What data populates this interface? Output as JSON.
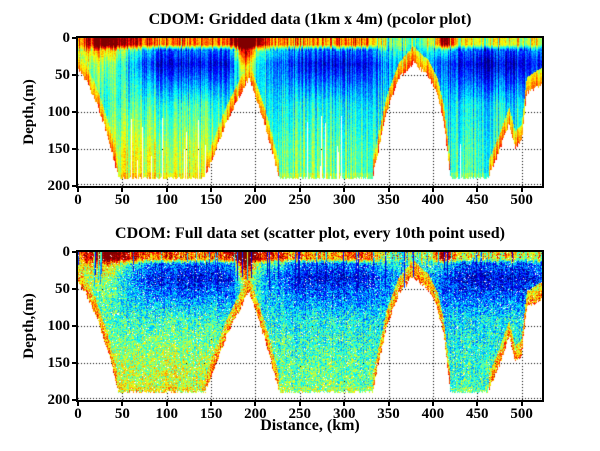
{
  "figure": {
    "background": "#ffffff",
    "axis_color": "#000000",
    "text_color": "#000000",
    "grid_style": "dotted",
    "colormap": "jet",
    "colormap_hint": {
      "low": "#00008f",
      "mid": "#00ffff",
      "high": "#7f0000"
    }
  },
  "chart_data": [
    {
      "type": "heatmap",
      "title": "CDOM: Gridded data (1km x 4m) (pcolor plot)",
      "xlabel": "",
      "ylabel": "Depth,(m)",
      "xlim": [
        0,
        523
      ],
      "ylim": [
        200,
        0
      ],
      "xticks": [
        0,
        50,
        100,
        150,
        200,
        250,
        300,
        350,
        400,
        450,
        500
      ],
      "yticks": [
        0,
        50,
        100,
        150,
        200
      ],
      "grid": true,
      "colormap": "jet",
      "render": {
        "mode": "pcolor",
        "seed": 11,
        "column_noise": 0.11,
        "pixel_noise": 0.05,
        "surface_noise": 0.12,
        "missing_column_prob": 0.05
      },
      "field": {
        "bathymetry_km_m": [
          [
            0,
            42
          ],
          [
            8,
            55
          ],
          [
            20,
            85
          ],
          [
            33,
            130
          ],
          [
            46,
            190
          ],
          [
            143,
            190
          ],
          [
            168,
            112
          ],
          [
            193,
            53
          ],
          [
            212,
            122
          ],
          [
            227,
            190
          ],
          [
            332,
            190
          ],
          [
            348,
            100
          ],
          [
            362,
            55
          ],
          [
            378,
            33
          ],
          [
            395,
            52
          ],
          [
            405,
            75
          ],
          [
            412,
            110
          ],
          [
            420,
            190
          ],
          [
            462,
            190
          ],
          [
            476,
            150
          ],
          [
            486,
            115
          ],
          [
            493,
            148
          ],
          [
            500,
            140
          ],
          [
            506,
            75
          ],
          [
            523,
            62
          ]
        ],
        "surface_value": [
          [
            0,
            0.74
          ],
          [
            18,
            0.82
          ],
          [
            25,
            0.92
          ],
          [
            48,
            0.92
          ],
          [
            62,
            0.85
          ],
          [
            75,
            0.78
          ],
          [
            95,
            0.82
          ],
          [
            120,
            0.78
          ],
          [
            140,
            0.74
          ],
          [
            160,
            0.78
          ],
          [
            178,
            0.9
          ],
          [
            189,
            0.98
          ],
          [
            200,
            0.9
          ],
          [
            212,
            0.82
          ],
          [
            228,
            0.78
          ],
          [
            255,
            0.74
          ],
          [
            290,
            0.72
          ],
          [
            322,
            0.8
          ],
          [
            332,
            0.72
          ],
          [
            345,
            0.52
          ],
          [
            365,
            0.45
          ],
          [
            385,
            0.48
          ],
          [
            400,
            0.55
          ],
          [
            410,
            0.85
          ],
          [
            418,
            0.8
          ],
          [
            432,
            0.6
          ],
          [
            450,
            0.58
          ],
          [
            470,
            0.62
          ],
          [
            490,
            0.6
          ],
          [
            510,
            0.58
          ],
          [
            523,
            0.6
          ]
        ],
        "submin_value": [
          [
            0,
            0.5
          ],
          [
            20,
            0.44
          ],
          [
            50,
            0.32
          ],
          [
            80,
            0.17
          ],
          [
            95,
            0.11
          ],
          [
            130,
            0.1
          ],
          [
            175,
            0.14
          ],
          [
            189,
            0.5
          ],
          [
            202,
            0.32
          ],
          [
            228,
            0.24
          ],
          [
            252,
            0.12
          ],
          [
            290,
            0.1
          ],
          [
            325,
            0.13
          ],
          [
            345,
            0.25
          ],
          [
            372,
            0.28
          ],
          [
            400,
            0.26
          ],
          [
            420,
            0.16
          ],
          [
            438,
            0.08
          ],
          [
            470,
            0.08
          ],
          [
            500,
            0.1
          ],
          [
            523,
            0.17
          ]
        ],
        "mid_value": [
          [
            0,
            0.42
          ],
          [
            150,
            0.42
          ],
          [
            225,
            0.38
          ],
          [
            330,
            0.36
          ],
          [
            420,
            0.35
          ],
          [
            523,
            0.36
          ]
        ],
        "deep_value": [
          [
            0,
            0.58
          ],
          [
            140,
            0.56
          ],
          [
            165,
            0.52
          ],
          [
            225,
            0.48
          ],
          [
            330,
            0.46
          ],
          [
            360,
            0.46
          ],
          [
            420,
            0.42
          ],
          [
            523,
            0.42
          ]
        ],
        "profile_z": [
          0,
          9,
          16,
          35,
          90,
          155,
          205
        ],
        "plumes": [
          {
            "x": 189,
            "sx": 8,
            "sz": 46,
            "a": 0.45
          },
          {
            "x": 30,
            "sx": 16,
            "sz": 55,
            "a": 0.2
          },
          {
            "x": 413,
            "sx": 6,
            "sz": 20,
            "a": 0.18
          }
        ],
        "fringe": {
          "max_bottom": 186,
          "width": 22,
          "v0": 0.6,
          "v1": 0.18
        }
      }
    },
    {
      "type": "scatter",
      "title": "CDOM: Full data set (scatter plot, every 10th point used)",
      "xlabel": "Distance, (km)",
      "ylabel": "Depth,(m)",
      "xlim": [
        0,
        523
      ],
      "ylim": [
        200,
        0
      ],
      "xticks": [
        0,
        50,
        100,
        150,
        200,
        250,
        300,
        350,
        400,
        450,
        500
      ],
      "yticks": [
        0,
        50,
        100,
        150,
        200
      ],
      "grid": true,
      "colormap": "jet",
      "render": {
        "mode": "scatter",
        "seed": 23,
        "column_noise": 0.05,
        "pixel_noise": 0.16,
        "surface_noise": 0.12,
        "streak_prob": 0.09,
        "dropout": 0.025
      },
      "field": {
        "bathymetry_km_m": [
          [
            0,
            42
          ],
          [
            8,
            55
          ],
          [
            20,
            85
          ],
          [
            33,
            130
          ],
          [
            46,
            190
          ],
          [
            143,
            190
          ],
          [
            168,
            112
          ],
          [
            193,
            53
          ],
          [
            212,
            122
          ],
          [
            227,
            190
          ],
          [
            332,
            190
          ],
          [
            348,
            100
          ],
          [
            362,
            55
          ],
          [
            378,
            33
          ],
          [
            395,
            52
          ],
          [
            405,
            75
          ],
          [
            412,
            110
          ],
          [
            420,
            190
          ],
          [
            462,
            190
          ],
          [
            476,
            150
          ],
          [
            486,
            115
          ],
          [
            493,
            148
          ],
          [
            500,
            140
          ],
          [
            506,
            75
          ],
          [
            523,
            62
          ]
        ],
        "surface_value": [
          [
            0,
            0.74
          ],
          [
            18,
            0.82
          ],
          [
            25,
            0.92
          ],
          [
            48,
            0.92
          ],
          [
            62,
            0.85
          ],
          [
            75,
            0.78
          ],
          [
            95,
            0.82
          ],
          [
            120,
            0.78
          ],
          [
            140,
            0.74
          ],
          [
            160,
            0.78
          ],
          [
            178,
            0.9
          ],
          [
            189,
            0.98
          ],
          [
            200,
            0.9
          ],
          [
            212,
            0.82
          ],
          [
            228,
            0.78
          ],
          [
            255,
            0.74
          ],
          [
            290,
            0.72
          ],
          [
            322,
            0.8
          ],
          [
            332,
            0.72
          ],
          [
            345,
            0.52
          ],
          [
            365,
            0.45
          ],
          [
            385,
            0.48
          ],
          [
            400,
            0.55
          ],
          [
            410,
            0.85
          ],
          [
            418,
            0.8
          ],
          [
            432,
            0.6
          ],
          [
            450,
            0.58
          ],
          [
            470,
            0.62
          ],
          [
            490,
            0.6
          ],
          [
            510,
            0.58
          ],
          [
            523,
            0.6
          ]
        ],
        "submin_value": [
          [
            0,
            0.5
          ],
          [
            20,
            0.44
          ],
          [
            50,
            0.32
          ],
          [
            80,
            0.17
          ],
          [
            95,
            0.11
          ],
          [
            130,
            0.1
          ],
          [
            175,
            0.14
          ],
          [
            189,
            0.5
          ],
          [
            202,
            0.32
          ],
          [
            228,
            0.24
          ],
          [
            252,
            0.12
          ],
          [
            290,
            0.1
          ],
          [
            325,
            0.13
          ],
          [
            345,
            0.25
          ],
          [
            372,
            0.28
          ],
          [
            400,
            0.26
          ],
          [
            420,
            0.16
          ],
          [
            438,
            0.08
          ],
          [
            470,
            0.08
          ],
          [
            500,
            0.1
          ],
          [
            523,
            0.17
          ]
        ],
        "mid_value": [
          [
            0,
            0.42
          ],
          [
            150,
            0.42
          ],
          [
            225,
            0.38
          ],
          [
            330,
            0.36
          ],
          [
            420,
            0.35
          ],
          [
            523,
            0.36
          ]
        ],
        "deep_value": [
          [
            0,
            0.58
          ],
          [
            140,
            0.56
          ],
          [
            165,
            0.52
          ],
          [
            225,
            0.48
          ],
          [
            330,
            0.46
          ],
          [
            360,
            0.46
          ],
          [
            420,
            0.42
          ],
          [
            523,
            0.42
          ]
        ],
        "profile_z": [
          0,
          9,
          16,
          35,
          90,
          155,
          205
        ],
        "plumes": [
          {
            "x": 189,
            "sx": 8,
            "sz": 46,
            "a": 0.45
          },
          {
            "x": 30,
            "sx": 16,
            "sz": 55,
            "a": 0.2
          },
          {
            "x": 413,
            "sx": 6,
            "sz": 20,
            "a": 0.18
          }
        ],
        "fringe": {
          "max_bottom": 186,
          "width": 22,
          "v0": 0.6,
          "v1": 0.18
        }
      }
    }
  ]
}
